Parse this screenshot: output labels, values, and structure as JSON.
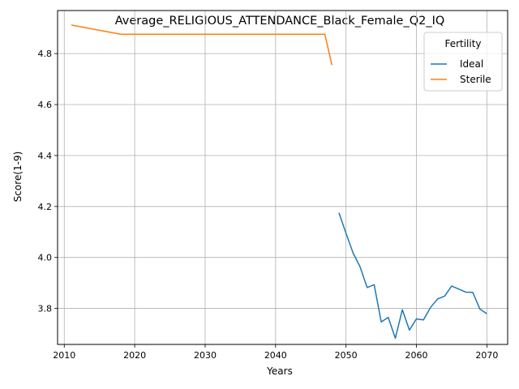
{
  "chart_data": {
    "type": "line",
    "title": "Average_RELIGIOUS_ATTENDANCE_Black_Female_Q2_IQ",
    "xlabel": "Years",
    "ylabel": "Score(1-9)",
    "xlim": [
      2009.05,
      2072.95
    ],
    "ylim": [
      3.6587,
      4.969
    ],
    "xticks": [
      2010,
      2020,
      2030,
      2040,
      2050,
      2060,
      2070
    ],
    "yticks": [
      3.8,
      4.0,
      4.2,
      4.4,
      4.6,
      4.8
    ],
    "xtick_labels": [
      "2010",
      "2020",
      "2030",
      "2040",
      "2050",
      "2060",
      "2070"
    ],
    "ytick_labels": [
      "3.8",
      "4.0",
      "4.2",
      "4.4",
      "4.6",
      "4.8"
    ],
    "grid": true,
    "legend": {
      "title": "Fertility",
      "position": "top-right"
    },
    "series": [
      {
        "name": "Ideal",
        "color": "#1f77b4",
        "x": [
          2049,
          2050,
          2051,
          2052,
          2053,
          2054,
          2055,
          2056,
          2057,
          2058,
          2059,
          2060,
          2061,
          2062,
          2063,
          2064,
          2065,
          2066,
          2067,
          2068,
          2069,
          2070
        ],
        "y": [
          4.175,
          4.095,
          4.018,
          3.963,
          3.882,
          3.893,
          3.747,
          3.765,
          3.683,
          3.795,
          3.715,
          3.759,
          3.755,
          3.804,
          3.837,
          3.848,
          3.888,
          3.876,
          3.864,
          3.863,
          3.798,
          3.779
        ]
      },
      {
        "name": "Sterile",
        "color": "#ff7f0e",
        "x": [
          2011,
          2018,
          2020,
          2025,
          2030,
          2035,
          2040,
          2045,
          2047,
          2048
        ],
        "y": [
          4.912,
          4.876,
          4.876,
          4.876,
          4.876,
          4.876,
          4.876,
          4.876,
          4.876,
          4.755
        ]
      }
    ]
  }
}
